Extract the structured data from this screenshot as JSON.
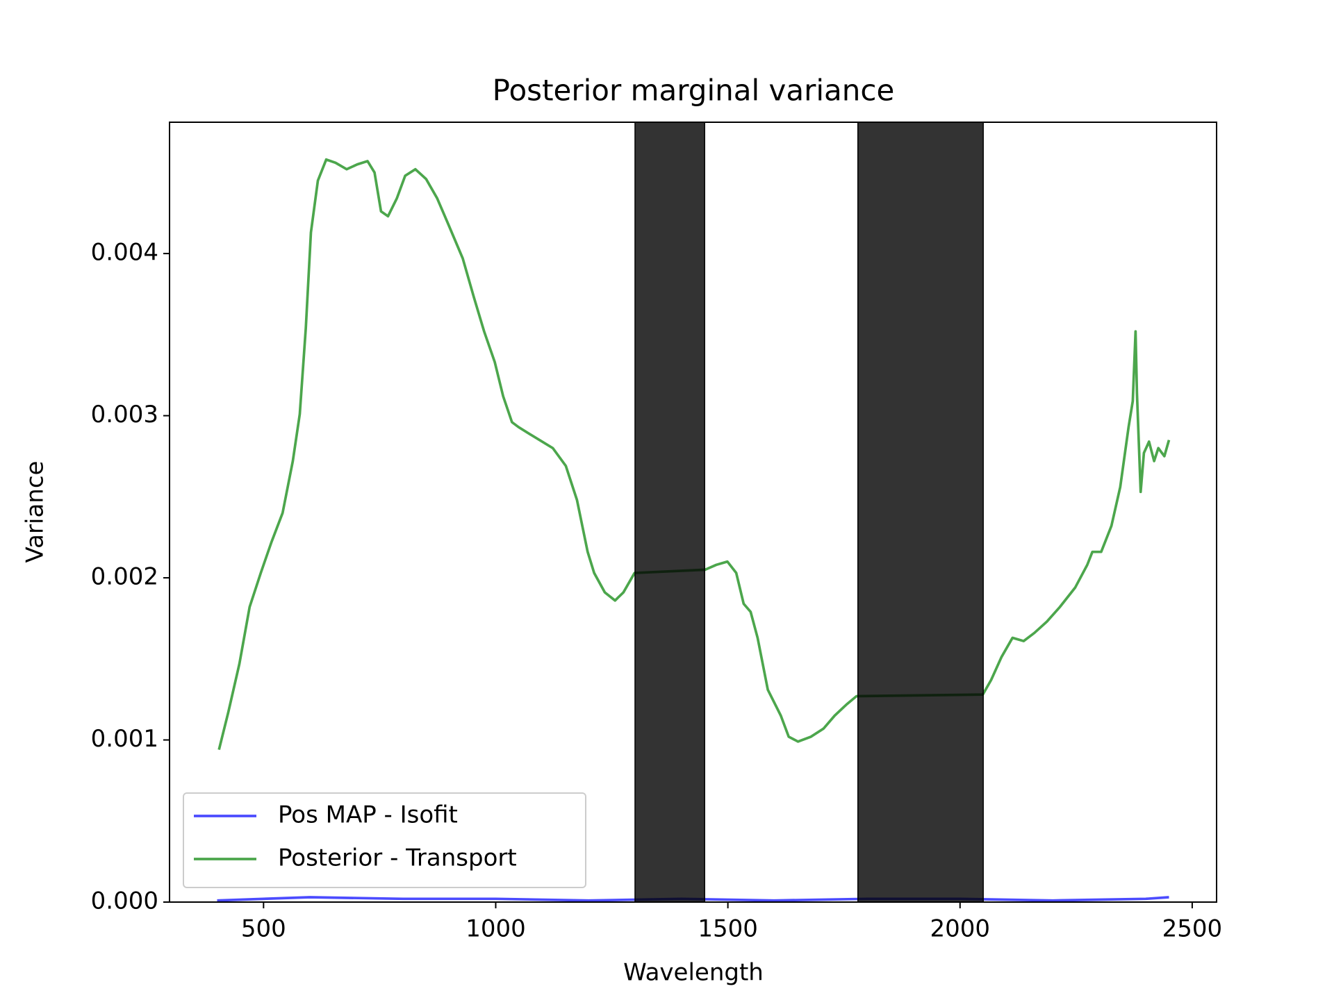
{
  "chart_data": {
    "type": "line",
    "title": "Posterior marginal variance",
    "xlabel": "Wavelength",
    "ylabel": "Variance",
    "xlim": [
      297.5,
      2552.5
    ],
    "xticks": [
      500,
      1000,
      1500,
      2000,
      2500
    ],
    "ylim": [
      0,
      0.00481
    ],
    "yticks": [
      {
        "value": 0,
        "label": "0.000"
      },
      {
        "value": 0.001,
        "label": "0.001"
      },
      {
        "value": 0.002,
        "label": "0.002"
      },
      {
        "value": 0.003,
        "label": "0.003"
      },
      {
        "value": 0.004,
        "label": "0.004"
      }
    ],
    "grid": false,
    "legend": "lower left",
    "shaded_regions": [
      [
        1300,
        1450
      ],
      [
        1780,
        2050
      ]
    ],
    "shade_color": "#000000",
    "shade_alpha": 0.8,
    "series": [
      {
        "name": "Pos MAP - Isofit",
        "color": "#0000ff",
        "alpha": 0.7,
        "x": [
          400,
          600,
          800,
          1000,
          1200,
          1400,
          1600,
          1800,
          2000,
          2200,
          2400,
          2450
        ],
        "values": [
          1e-05,
          3e-05,
          2e-05,
          2e-05,
          1e-05,
          2e-05,
          1e-05,
          2e-05,
          2e-05,
          1e-05,
          2e-05,
          3e-05
        ]
      },
      {
        "name": "Posterior - Transport",
        "color": "#008000",
        "alpha": 0.7,
        "x": [
          404,
          424,
          448,
          470,
          494,
          517,
          541,
          563,
          578,
          591,
          602,
          617,
          635,
          655,
          679,
          702,
          724,
          739,
          753,
          768,
          787,
          805,
          827,
          850,
          874,
          898,
          929,
          953,
          975,
          998,
          1016,
          1035,
          1049,
          1077,
          1123,
          1151,
          1175,
          1198,
          1212,
          1235,
          1257,
          1275,
          1299,
          1451,
          1475,
          1499,
          1518,
          1534,
          1549,
          1564,
          1586,
          1614,
          1631,
          1651,
          1679,
          1706,
          1730,
          1756,
          1777,
          2049,
          2067,
          2089,
          2113,
          2137,
          2160,
          2187,
          2215,
          2248,
          2274,
          2285,
          2304,
          2326,
          2345,
          2363,
          2372,
          2378,
          2381,
          2389,
          2396,
          2407,
          2418,
          2427,
          2440,
          2450
        ],
        "values": [
          0.00094,
          0.00117,
          0.00147,
          0.00182,
          0.00203,
          0.00222,
          0.0024,
          0.00272,
          0.00301,
          0.00354,
          0.00413,
          0.00445,
          0.00458,
          0.00456,
          0.00452,
          0.00455,
          0.00457,
          0.0045,
          0.00426,
          0.00423,
          0.00434,
          0.00448,
          0.00452,
          0.00446,
          0.00434,
          0.00418,
          0.00397,
          0.00373,
          0.00352,
          0.00333,
          0.00312,
          0.00296,
          0.00293,
          0.00288,
          0.0028,
          0.00269,
          0.00248,
          0.00216,
          0.00203,
          0.00191,
          0.00186,
          0.00191,
          0.00203,
          0.00205,
          0.00208,
          0.0021,
          0.00203,
          0.00184,
          0.00179,
          0.00163,
          0.00131,
          0.00115,
          0.00102,
          0.00099,
          0.00102,
          0.00107,
          0.00115,
          0.00122,
          0.00127,
          0.00128,
          0.00137,
          0.00151,
          0.00163,
          0.00161,
          0.00166,
          0.00173,
          0.00182,
          0.00194,
          0.00208,
          0.00216,
          0.00216,
          0.00232,
          0.00256,
          0.00293,
          0.00309,
          0.00352,
          0.00314,
          0.00253,
          0.00277,
          0.00284,
          0.00272,
          0.0028,
          0.00275,
          0.00285
        ]
      }
    ]
  }
}
